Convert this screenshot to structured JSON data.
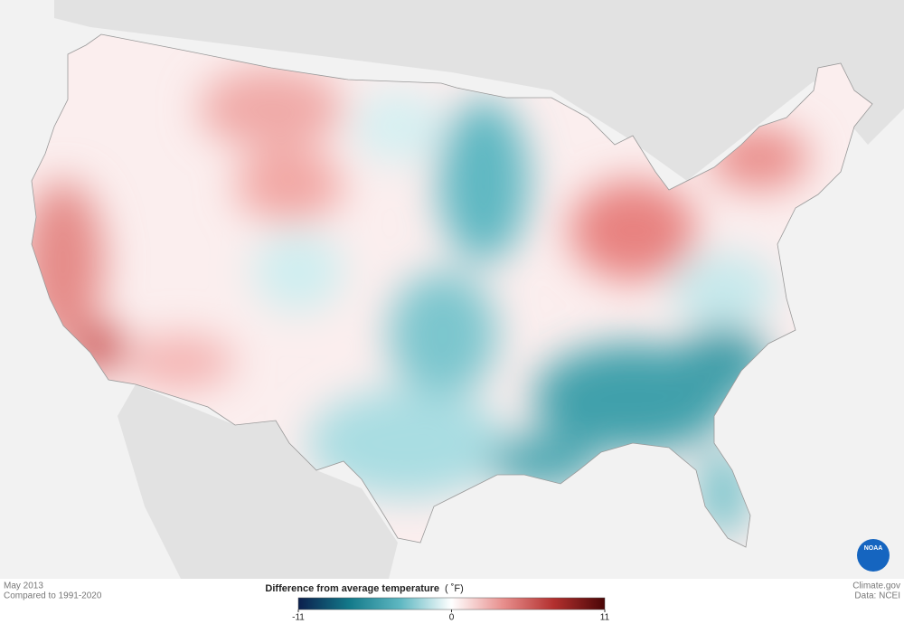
{
  "header": {
    "period": "May 2013",
    "baseline": "Compared to 1991-2020"
  },
  "legend": {
    "title": "Difference from average temperature",
    "unit": "( ˚F)",
    "lim": [
      -11,
      11
    ],
    "ticks": [
      -11,
      0,
      11
    ],
    "colors": [
      "#0b1f4d",
      "#137a8a",
      "#5fb8c2",
      "#ffffff",
      "#e8908e",
      "#b3302f",
      "#4a0606"
    ]
  },
  "credits": {
    "site": "Climate.gov",
    "source": "Data: NCEI",
    "logo": "NOAA"
  }
}
